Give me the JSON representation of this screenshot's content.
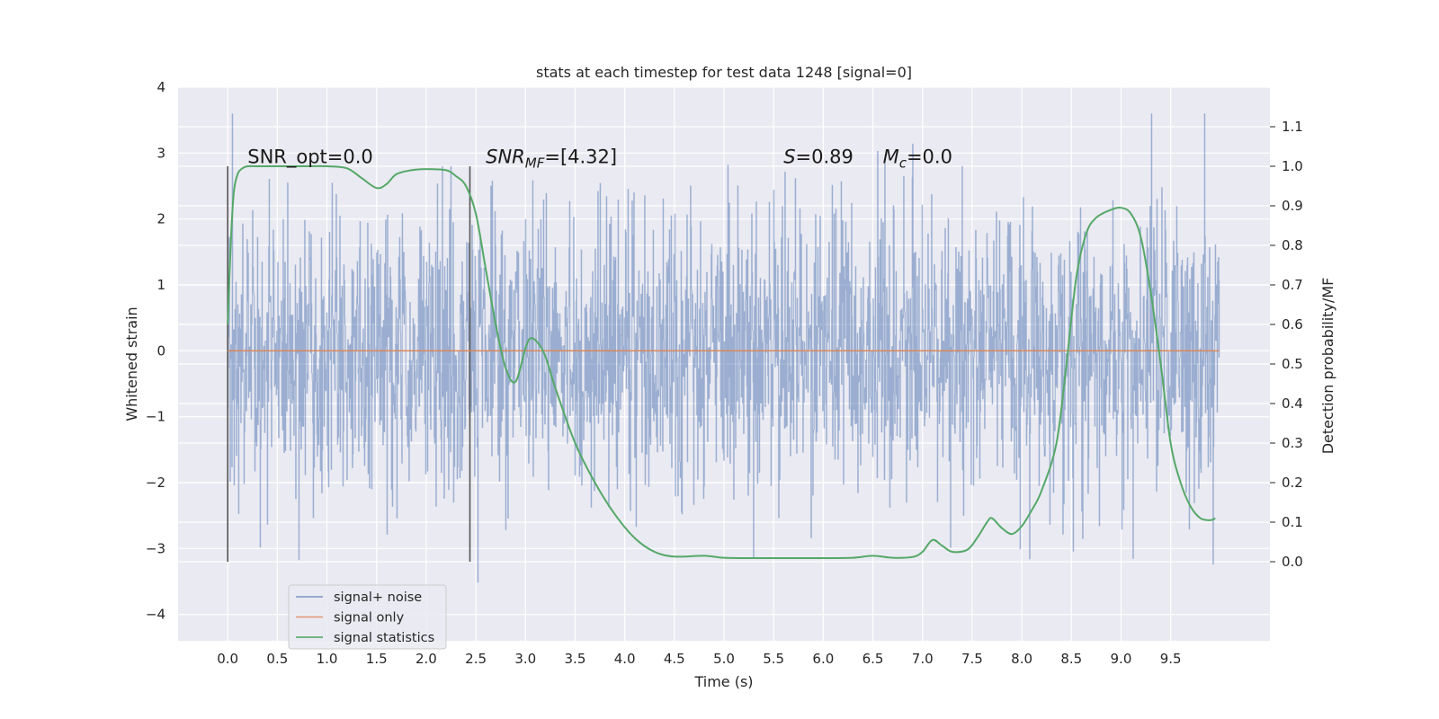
{
  "chart_data": {
    "type": "line",
    "title": "stats at each timestep for test data 1248 [signal=0]",
    "xlabel": "Time (s)",
    "ylabel": "Whitened strain",
    "y2label": "Detection probability/MF",
    "xlim": [
      -0.5,
      10.5
    ],
    "ylim": [
      -4.4,
      4.0
    ],
    "y2lim": [
      -0.2,
      1.2
    ],
    "x_ticks": [
      0.0,
      0.5,
      1.0,
      1.5,
      2.0,
      2.5,
      3.0,
      3.5,
      4.0,
      4.5,
      5.0,
      5.5,
      6.0,
      6.5,
      7.0,
      7.5,
      8.0,
      8.5,
      9.0,
      9.5
    ],
    "x_tick_labels": [
      "0.0",
      "0.5",
      "1.0",
      "1.5",
      "2.0",
      "2.5",
      "3.0",
      "3.5",
      "4.0",
      "4.5",
      "5.0",
      "5.5",
      "6.0",
      "6.5",
      "7.0",
      "7.5",
      "8.0",
      "8.5",
      "9.0",
      "9.5"
    ],
    "y_ticks": [
      -4,
      -3,
      -2,
      -1,
      0,
      1,
      2,
      3,
      4
    ],
    "y_tick_labels": [
      "−4",
      "−3",
      "−2",
      "−1",
      "0",
      "1",
      "2",
      "3",
      "4"
    ],
    "y2_ticks": [
      0.0,
      0.1,
      0.2,
      0.3,
      0.4,
      0.5,
      0.6,
      0.7,
      0.8,
      0.9,
      1.0,
      1.1
    ],
    "y2_tick_labels": [
      "0.0",
      "0.1",
      "0.2",
      "0.3",
      "0.4",
      "0.5",
      "0.6",
      "0.7",
      "0.8",
      "0.9",
      "1.0",
      "1.1"
    ],
    "grid": true,
    "legend_position": "lower-left",
    "series": [
      {
        "name": "signal+ noise",
        "axis": "left",
        "color": "#4c72b0",
        "opacity": 0.5,
        "x_range": [
          0.0,
          9.99
        ],
        "typical_amplitude": 1.5,
        "peak_amplitude": 3.6
      },
      {
        "name": "signal only",
        "axis": "left",
        "color": "#dd8452",
        "x": [
          0.0,
          9.99
        ],
        "y": [
          0.0,
          0.0
        ]
      },
      {
        "name": "signal statistics",
        "axis": "right",
        "color": "#55a868",
        "x": [
          0.0,
          0.03,
          0.06,
          0.1,
          0.15,
          0.2,
          0.3,
          0.5,
          0.8,
          1.0,
          1.2,
          1.35,
          1.5,
          1.6,
          1.7,
          1.85,
          2.0,
          2.2,
          2.3,
          2.4,
          2.5,
          2.6,
          2.7,
          2.8,
          2.9,
          3.0,
          3.05,
          3.12,
          3.2,
          3.3,
          3.5,
          3.7,
          3.9,
          4.1,
          4.3,
          4.5,
          4.8,
          5.0,
          5.3,
          5.6,
          6.0,
          6.3,
          6.5,
          6.7,
          6.9,
          7.0,
          7.1,
          7.2,
          7.3,
          7.45,
          7.55,
          7.65,
          7.7,
          7.8,
          7.9,
          8.0,
          8.1,
          8.2,
          8.35,
          8.45,
          8.55,
          8.65,
          8.75,
          8.9,
          9.0,
          9.1,
          9.2,
          9.3,
          9.4,
          9.5,
          9.6,
          9.7,
          9.8,
          9.9,
          9.95
        ],
        "y": [
          0.6,
          0.8,
          0.93,
          0.98,
          0.995,
          1.0,
          1.0,
          1.0,
          1.0,
          1.0,
          0.995,
          0.97,
          0.945,
          0.955,
          0.98,
          0.99,
          0.993,
          0.99,
          0.975,
          0.95,
          0.88,
          0.74,
          0.6,
          0.49,
          0.455,
          0.54,
          0.565,
          0.555,
          0.52,
          0.44,
          0.3,
          0.2,
          0.12,
          0.06,
          0.025,
          0.013,
          0.015,
          0.01,
          0.009,
          0.009,
          0.009,
          0.01,
          0.015,
          0.01,
          0.012,
          0.025,
          0.055,
          0.04,
          0.025,
          0.03,
          0.06,
          0.1,
          0.11,
          0.085,
          0.07,
          0.09,
          0.13,
          0.18,
          0.3,
          0.5,
          0.72,
          0.83,
          0.87,
          0.89,
          0.895,
          0.88,
          0.82,
          0.68,
          0.5,
          0.3,
          0.2,
          0.14,
          0.11,
          0.105,
          0.11
        ]
      }
    ],
    "vertical_markers": [
      {
        "x": 0.0,
        "y_range": [
          -3.2,
          2.8
        ],
        "color": "#555555"
      },
      {
        "x": 2.44,
        "y_range": [
          -3.2,
          2.8
        ],
        "color": "#555555"
      }
    ],
    "annotations": [
      {
        "id": "snr_opt",
        "text": "SNR_opt=0.0",
        "x": 0.2,
        "y": 2.85
      },
      {
        "id": "snr_mf",
        "main": "SNR",
        "sub": "MF",
        "rest": "=[4.32]",
        "x": 2.6,
        "y": 2.85
      },
      {
        "id": "s_stat",
        "main": "S",
        "rest": "=0.89",
        "x": 5.6,
        "y": 2.85
      },
      {
        "id": "mc",
        "main": "M",
        "sub": "c",
        "rest": "=0.0",
        "x": 6.6,
        "y": 2.85
      }
    ]
  }
}
